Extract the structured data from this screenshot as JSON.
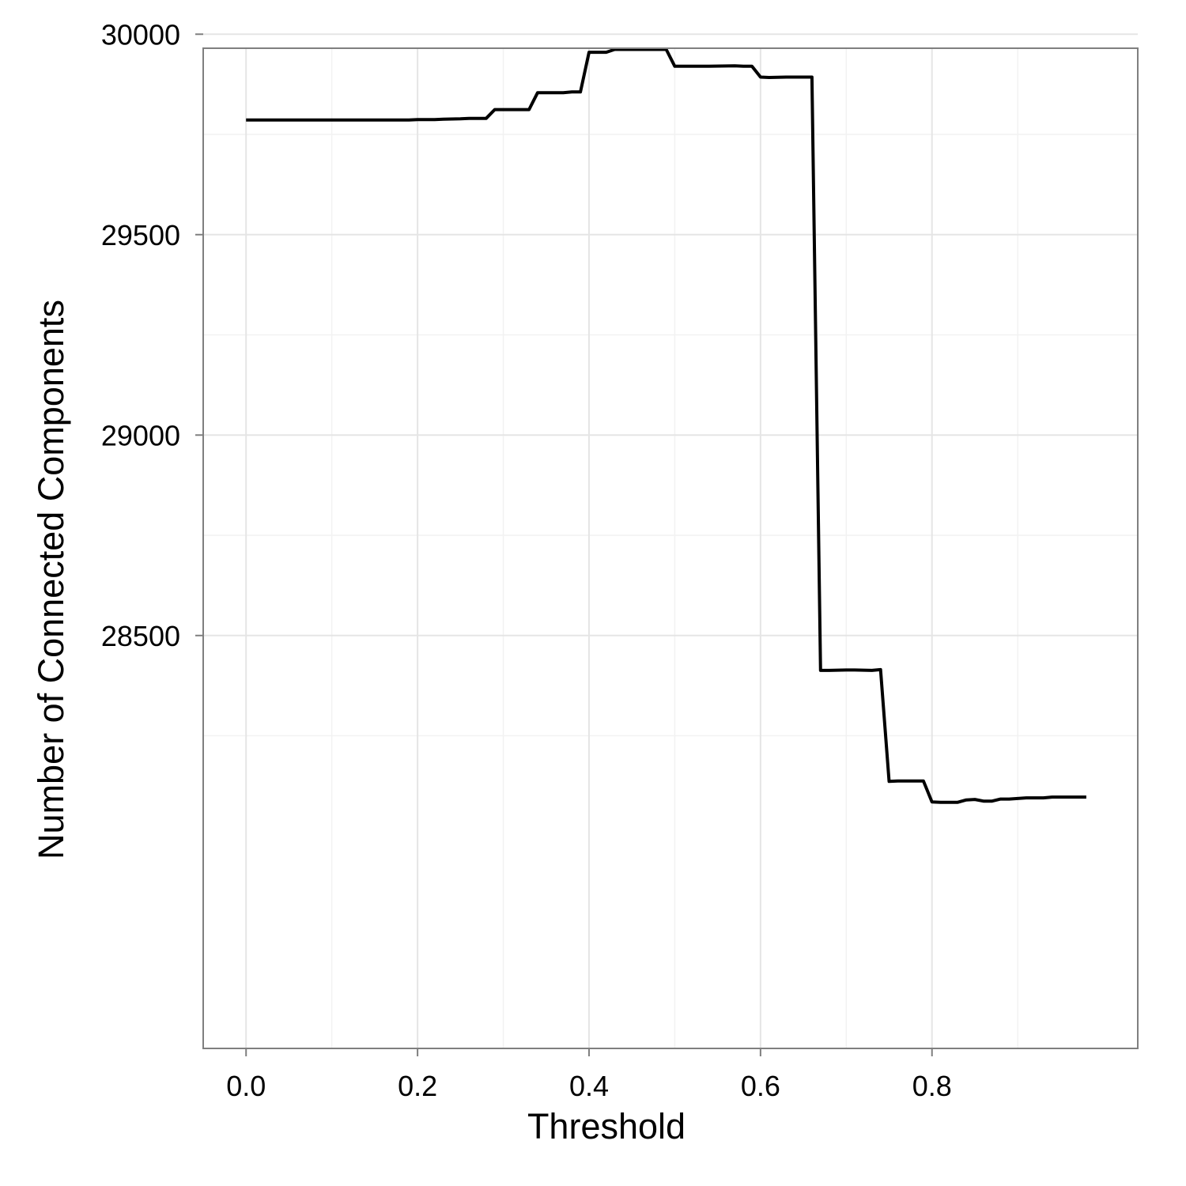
{
  "chart_data": {
    "type": "line",
    "xlabel": "Threshold",
    "ylabel": "Number of Connected Components",
    "xlim": [
      -0.05,
      1.04
    ],
    "ylim": [
      27470,
      29965
    ],
    "x_ticks": [
      0.0,
      0.2,
      0.4,
      0.6,
      0.8
    ],
    "x_tick_labels": [
      "0.0",
      "0.2",
      "0.4",
      "0.6",
      "0.8"
    ],
    "y_ticks": [
      28500,
      29000,
      29500,
      30000
    ],
    "y_tick_labels": [
      "28500",
      "29000",
      "29500",
      "30000"
    ],
    "grid": true,
    "line_color": "#000000",
    "series": [
      {
        "x": [
          0.0,
          0.19,
          0.2,
          0.22,
          0.23,
          0.25,
          0.26,
          0.28,
          0.29,
          0.33,
          0.34,
          0.37,
          0.38,
          0.39,
          0.4,
          0.41,
          0.42,
          0.43,
          0.49,
          0.5,
          0.51,
          0.54,
          0.57,
          0.58,
          0.59,
          0.6,
          0.61,
          0.63,
          0.66,
          0.67,
          0.68,
          0.7,
          0.71,
          0.73,
          0.74,
          0.75,
          0.76,
          0.79,
          0.8,
          0.81,
          0.83,
          0.84,
          0.85,
          0.86,
          0.87,
          0.88,
          0.89,
          0.91,
          0.92,
          0.93,
          0.94,
          0.95,
          0.98
        ],
        "y": [
          29786,
          29786,
          29787,
          29787,
          29788,
          29789,
          29790,
          29790,
          29812,
          29812,
          29854,
          29854,
          29856,
          29856,
          29955,
          29955,
          29955,
          29962,
          29962,
          29920,
          29920,
          29920,
          29921,
          29920,
          29920,
          29893,
          29892,
          29893,
          29893,
          28413,
          28413,
          28414,
          28414,
          28413,
          28415,
          28136,
          28137,
          28137,
          28085,
          28084,
          28084,
          28090,
          28091,
          28087,
          28087,
          28092,
          28092,
          28095,
          28095,
          28095,
          28097,
          28097,
          28097
        ]
      }
    ]
  }
}
